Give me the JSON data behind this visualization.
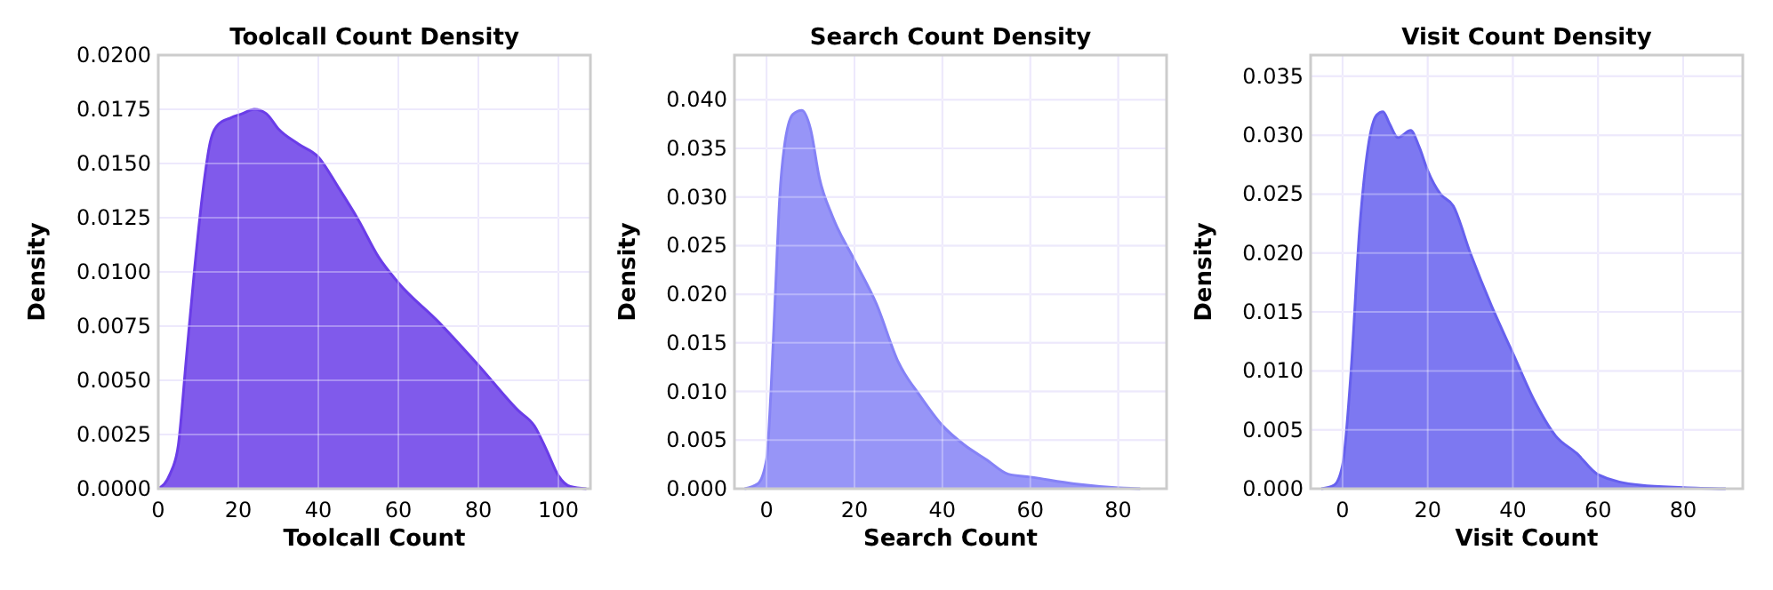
{
  "chart_data": [
    {
      "type": "area",
      "title": "Toolcall Count Density",
      "xlabel": "Toolcall Count",
      "ylabel": "Density",
      "xlim": [
        0,
        108
      ],
      "xticks": [
        0,
        20,
        40,
        60,
        80,
        100
      ],
      "ylim": [
        0,
        0.02
      ],
      "yticks": [
        {
          "value": 0,
          "label": "0.0000"
        },
        {
          "value": 0.0025,
          "label": "0.0025"
        },
        {
          "value": 0.005,
          "label": "0.0050"
        },
        {
          "value": 0.0075,
          "label": "0.0075"
        },
        {
          "value": 0.01,
          "label": "0.0100"
        },
        {
          "value": 0.0125,
          "label": "0.0125"
        },
        {
          "value": 0.015,
          "label": "0.0150"
        },
        {
          "value": 0.0175,
          "label": "0.0175"
        },
        {
          "value": 0.02,
          "label": "0.0200"
        }
      ],
      "grid": true,
      "series": [
        {
          "color": "#6a3de8",
          "x": [
            0,
            3,
            5,
            7,
            9,
            11,
            13,
            15,
            18,
            21,
            24,
            27,
            30,
            35,
            40,
            45,
            50,
            55,
            60,
            70,
            80,
            90,
            94,
            97,
            100,
            103,
            107
          ],
          "values": [
            0,
            0.0007,
            0.002,
            0.006,
            0.01,
            0.0135,
            0.016,
            0.0168,
            0.0171,
            0.0173,
            0.0175,
            0.0173,
            0.0166,
            0.0159,
            0.0153,
            0.0139,
            0.0124,
            0.0107,
            0.0095,
            0.0077,
            0.0057,
            0.0036,
            0.0029,
            0.0018,
            0.0006,
            0.0001,
            0
          ]
        }
      ]
    },
    {
      "type": "area",
      "title": "Search Count Density",
      "xlabel": "Search Count",
      "ylabel": "Density",
      "xlim": [
        -7.3,
        91
      ],
      "xticks": [
        0,
        20,
        40,
        60,
        80
      ],
      "ylim": [
        0,
        0.0446
      ],
      "yticks": [
        {
          "value": 0,
          "label": "0.000"
        },
        {
          "value": 0.005,
          "label": "0.005"
        },
        {
          "value": 0.01,
          "label": "0.010"
        },
        {
          "value": 0.015,
          "label": "0.015"
        },
        {
          "value": 0.02,
          "label": "0.020"
        },
        {
          "value": 0.025,
          "label": "0.025"
        },
        {
          "value": 0.03,
          "label": "0.030"
        },
        {
          "value": 0.035,
          "label": "0.035"
        },
        {
          "value": 0.04,
          "label": "0.040"
        }
      ],
      "grid": true,
      "series": [
        {
          "color": "#8582f6",
          "x": [
            -5,
            -2,
            0,
            1,
            2,
            3,
            4,
            6,
            8,
            10,
            12,
            15,
            20,
            25,
            30,
            35,
            40,
            45,
            50,
            55,
            60,
            70,
            80,
            85
          ],
          "values": [
            0,
            0.0005,
            0.003,
            0.01,
            0.02,
            0.03,
            0.035,
            0.0385,
            0.0389,
            0.037,
            0.032,
            0.028,
            0.0235,
            0.019,
            0.013,
            0.0095,
            0.0065,
            0.0045,
            0.003,
            0.0015,
            0.0012,
            0.0005,
            0.0001,
            0
          ]
        }
      ]
    },
    {
      "type": "area",
      "title": "Visit Count Density",
      "xlabel": "Visit Count",
      "ylabel": "Density",
      "xlim": [
        -7.5,
        94
      ],
      "xticks": [
        0,
        20,
        40,
        60,
        80
      ],
      "ylim": [
        0,
        0.0368
      ],
      "yticks": [
        {
          "value": 0,
          "label": "0.000"
        },
        {
          "value": 0.005,
          "label": "0.005"
        },
        {
          "value": 0.01,
          "label": "0.010"
        },
        {
          "value": 0.015,
          "label": "0.015"
        },
        {
          "value": 0.02,
          "label": "0.020"
        },
        {
          "value": 0.025,
          "label": "0.025"
        },
        {
          "value": 0.03,
          "label": "0.030"
        },
        {
          "value": 0.035,
          "label": "0.035"
        }
      ],
      "grid": true,
      "series": [
        {
          "color": "#6660ee",
          "x": [
            -5,
            -2,
            0,
            2,
            4,
            6,
            8,
            9.5,
            11,
            13,
            16,
            18,
            20,
            23,
            26,
            30,
            35,
            40,
            45,
            50,
            55,
            60,
            70,
            80,
            90
          ],
          "values": [
            0,
            0.0003,
            0.002,
            0.01,
            0.022,
            0.029,
            0.0317,
            0.032,
            0.031,
            0.0298,
            0.0304,
            0.029,
            0.027,
            0.025,
            0.024,
            0.02,
            0.0155,
            0.0115,
            0.0075,
            0.0045,
            0.003,
            0.0012,
            0.0003,
            0.0001,
            0
          ]
        }
      ]
    }
  ]
}
